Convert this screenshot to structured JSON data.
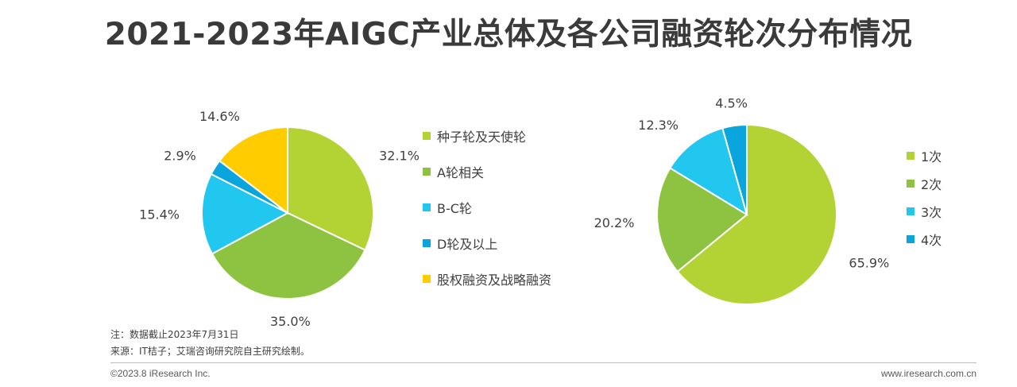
{
  "page": {
    "title": "2021-2023年AIGC产业总体及各公司融资轮次分布情况",
    "note": "注：数据截止2023年7月31日",
    "source": "来源：IT桔子；艾瑞咨询研究院自主研究绘制。",
    "copyright": "©2023.8 iResearch Inc.",
    "website": "www.iresearch.com.cn"
  },
  "chart_data": [
    {
      "type": "pie",
      "title": "",
      "start": "12 o'clock, clockwise",
      "legend_position": "right",
      "slices": [
        {
          "label": "种子轮及天使轮",
          "value": 32.1,
          "text": "32.1%",
          "color": "#b3d334"
        },
        {
          "label": "A轮相关",
          "value": 35.0,
          "text": "35.0%",
          "color": "#8dc341"
        },
        {
          "label": "B-C轮",
          "value": 15.4,
          "text": "15.4%",
          "color": "#22c7ef"
        },
        {
          "label": "D轮及以上",
          "value": 2.9,
          "text": "2.9%",
          "color": "#0aa5dc"
        },
        {
          "label": "股权融资及战略融资",
          "value": 14.6,
          "text": "14.6%",
          "color": "#ffcc00"
        }
      ]
    },
    {
      "type": "pie",
      "title": "",
      "start": "12 o'clock, clockwise",
      "legend_position": "right",
      "slices": [
        {
          "label": "1次",
          "value": 65.9,
          "text": "65.9%",
          "color": "#b3d334"
        },
        {
          "label": "2次",
          "value": 20.2,
          "text": "20.2%",
          "color": "#8dc341"
        },
        {
          "label": "3次",
          "value": 12.3,
          "text": "12.3%",
          "color": "#22c7ef"
        },
        {
          "label": "4次",
          "value": 4.5,
          "text": "4.5%",
          "color": "#0aa5dc"
        }
      ]
    }
  ]
}
